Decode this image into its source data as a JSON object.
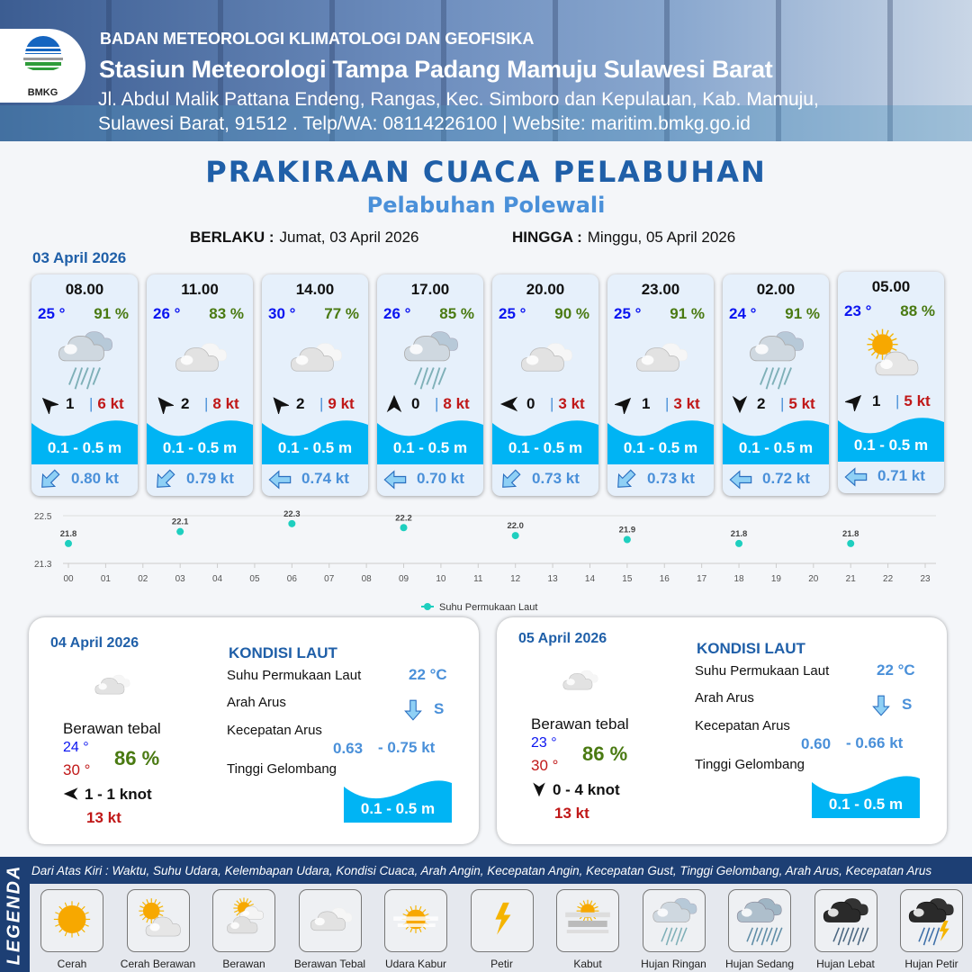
{
  "header": {
    "logo_text": "BMKG",
    "agency": "BADAN METEOROLOGI KLIMATOLOGI DAN GEOFISIKA",
    "station": "Stasiun Meteorologi Tampa Padang Mamuju Sulawesi Barat",
    "address_line1": "Jl. Abdul Malik Pattana Endeng, Rangas, Kec. Simboro dan Kepulauan, Kab. Mamuju,",
    "address_line2": "Sulawesi Barat, 91512 . Telp/WA: 08114226100 | Website: maritim.bmkg.go.id"
  },
  "title": "PRAKIRAAN CUACA PELABUHAN",
  "subtitle": "Pelabuhan Polewali",
  "validity": {
    "from_label": "BERLAKU :",
    "from": "Jumat, 03 April 2026",
    "to_label": "HINGGA :",
    "to": "Minggu, 05 April 2026"
  },
  "day1_date": "03 April 2026",
  "colors": {
    "brand": "#1f5fa8",
    "accent": "#4a90d9",
    "temp": "#0a14f0",
    "humidity": "#4a7a12",
    "gust": "#c01818",
    "wave": "#00b4f4"
  },
  "forecasts": [
    {
      "time": "08.00",
      "temp": "25 °",
      "humidity": "91 %",
      "weather": "hujan-ringan",
      "wind_dir_deg": 315,
      "wind_speed": "1",
      "gust": "6 kt",
      "wave": "0.1 - 0.5 m",
      "current_dir_deg": 225,
      "current_speed": "0.80 kt"
    },
    {
      "time": "11.00",
      "temp": "26 °",
      "humidity": "83 %",
      "weather": "berawan-tebal",
      "wind_dir_deg": 320,
      "wind_speed": "2",
      "gust": "8 kt",
      "wave": "0.1 - 0.5 m",
      "current_dir_deg": 225,
      "current_speed": "0.79 kt"
    },
    {
      "time": "14.00",
      "temp": "30 °",
      "humidity": "77 %",
      "weather": "berawan-tebal",
      "wind_dir_deg": 320,
      "wind_speed": "2",
      "gust": "9 kt",
      "wave": "0.1 - 0.5 m",
      "current_dir_deg": 270,
      "current_speed": "0.74 kt"
    },
    {
      "time": "17.00",
      "temp": "26 °",
      "humidity": "85 %",
      "weather": "hujan-ringan",
      "wind_dir_deg": 0,
      "wind_speed": "0",
      "gust": "8 kt",
      "wave": "0.1 - 0.5 m",
      "current_dir_deg": 270,
      "current_speed": "0.70 kt"
    },
    {
      "time": "20.00",
      "temp": "25 °",
      "humidity": "90 %",
      "weather": "berawan-tebal",
      "wind_dir_deg": 270,
      "wind_speed": "0",
      "gust": "3 kt",
      "wave": "0.1 - 0.5 m",
      "current_dir_deg": 225,
      "current_speed": "0.73 kt"
    },
    {
      "time": "23.00",
      "temp": "25 °",
      "humidity": "91 %",
      "weather": "berawan-tebal",
      "wind_dir_deg": 45,
      "wind_speed": "1",
      "gust": "3 kt",
      "wave": "0.1 - 0.5 m",
      "current_dir_deg": 225,
      "current_speed": "0.73 kt"
    },
    {
      "time": "02.00",
      "temp": "24 °",
      "humidity": "91 %",
      "weather": "hujan-ringan",
      "wind_dir_deg": 180,
      "wind_speed": "2",
      "gust": "5 kt",
      "wave": "0.1 - 0.5 m",
      "current_dir_deg": 270,
      "current_speed": "0.72 kt"
    },
    {
      "time": "05.00",
      "temp": "23 °",
      "humidity": "88 %",
      "weather": "cerah-berawan",
      "wind_dir_deg": 45,
      "wind_speed": "1",
      "gust": "5 kt",
      "wave": "0.1 - 0.5 m",
      "current_dir_deg": 270,
      "current_speed": "0.71 kt"
    }
  ],
  "chart_data": {
    "type": "scatter",
    "series": [
      {
        "name": "Suhu Permukaan Laut",
        "color": "#1ecfbf",
        "x": [
          "00",
          "03",
          "06",
          "09",
          "12",
          "15",
          "18",
          "21"
        ],
        "values": [
          21.8,
          22.1,
          22.3,
          22.2,
          22.0,
          21.9,
          21.8,
          21.8
        ]
      }
    ],
    "categories": [
      "00",
      "01",
      "02",
      "03",
      "04",
      "05",
      "06",
      "07",
      "08",
      "09",
      "10",
      "11",
      "12",
      "13",
      "14",
      "15",
      "16",
      "17",
      "18",
      "19",
      "20",
      "21",
      "22",
      "23"
    ],
    "yticks": [
      "22.5",
      "21.3"
    ],
    "ylim": [
      21.3,
      22.5
    ],
    "grid": true,
    "legend": "bottom",
    "data_labels": true
  },
  "daily": [
    {
      "date": "04 April 2026",
      "weather": "berawan-tebal",
      "desc": "Berawan tebal",
      "tmin": "24 °",
      "tmax": "30 °",
      "humidity": "86 %",
      "wind_dir_deg": 270,
      "wind": "1 - 1 knot",
      "gust": "13 kt",
      "sea_title": "KONDISI LAUT",
      "sst_label": "Suhu Permukaan Laut",
      "sst": "22 °C",
      "current_dir_label": "Arah Arus",
      "current_dir": "S",
      "current_speed_label": "Kecepatan Arus",
      "current_min": "0.63",
      "current_max": "- 0.75 kt",
      "wave_label": "Tinggi Gelombang",
      "wave": "0.1 - 0.5 m"
    },
    {
      "date": "05 April 2026",
      "weather": "berawan-tebal",
      "desc": "Berawan tebal",
      "tmin": "23 °",
      "tmax": "30 °",
      "humidity": "86 %",
      "wind_dir_deg": 180,
      "wind": "0 - 4 knot",
      "gust": "13 kt",
      "sea_title": "KONDISI LAUT",
      "sst_label": "Suhu Permukaan Laut",
      "sst": "22 °C",
      "current_dir_label": "Arah Arus",
      "current_dir": "S",
      "current_speed_label": "Kecepatan Arus",
      "current_min": "0.60",
      "current_max": "- 0.66 kt",
      "wave_label": "Tinggi Gelombang",
      "wave": "0.1 - 0.5 m"
    }
  ],
  "legend": {
    "side_label": "LEGENDA",
    "note": "Dari Atas Kiri : Waktu, Suhu Udara, Kelembapan Udara, Kondisi Cuaca, Arah Angin, Kecepatan Angin, Kecepatan Gust, Tinggi Gelombang, Arah Arus, Kecepatan Arus",
    "items": [
      {
        "label": "Cerah",
        "icon": "cerah"
      },
      {
        "label": "Cerah Berawan",
        "icon": "cerah-berawan"
      },
      {
        "label": "Berawan",
        "icon": "berawan"
      },
      {
        "label": "Berawan Tebal",
        "icon": "berawan-tebal"
      },
      {
        "label": "Udara Kabur",
        "icon": "udara-kabur"
      },
      {
        "label": "Petir",
        "icon": "petir"
      },
      {
        "label": "Kabut",
        "icon": "kabut"
      },
      {
        "label": "Hujan Ringan",
        "icon": "hujan-ringan"
      },
      {
        "label": "Hujan Sedang",
        "icon": "hujan-sedang"
      },
      {
        "label": "Hujan Lebat",
        "icon": "hujan-lebat"
      },
      {
        "label": "Hujan Petir",
        "icon": "hujan-petir"
      }
    ]
  }
}
